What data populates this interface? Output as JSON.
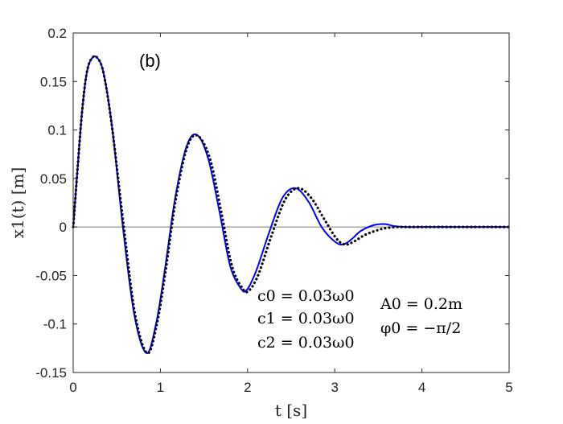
{
  "chart_data": {
    "type": "line",
    "panel_label": "(b)",
    "xlabel": "t [s]",
    "ylabel": "x1(t) [m]",
    "xlim": [
      0,
      5
    ],
    "ylim": [
      -0.15,
      0.2
    ],
    "x_ticks": [
      0,
      1,
      2,
      3,
      4,
      5
    ],
    "y_ticks": [
      -0.15,
      -0.1,
      -0.05,
      0,
      0.05,
      0.1,
      0.15,
      0.2
    ],
    "x_tick_labels": [
      "0",
      "1",
      "2",
      "3",
      "4",
      "5"
    ],
    "y_tick_labels": [
      "-0.15",
      "-0.1",
      "-0.05",
      "0",
      "0.05",
      "0.1",
      "0.15",
      "0.2"
    ],
    "zero_line": true,
    "grid": false,
    "annotations_left": [
      "c0 = 0.03ω0",
      "c1 = 0.03ω0",
      "c2 = 0.03ω0"
    ],
    "annotations_right": [
      "A0 = 0.2m",
      "φ0 = −π/2"
    ],
    "colors": {
      "solid": "#0000ff",
      "dotted": "#000000",
      "axis": "#262626",
      "zero": "#808080"
    },
    "series": [
      {
        "style": "solid",
        "x": [
          0,
          0.05,
          0.1,
          0.15,
          0.2,
          0.27,
          0.35,
          0.45,
          0.57,
          0.7,
          0.84,
          0.95,
          1.05,
          1.17,
          1.3,
          1.42,
          1.55,
          1.68,
          1.8,
          1.92,
          1.99,
          2.1,
          2.25,
          2.4,
          2.55,
          2.7,
          2.85,
          3.0,
          3.1,
          3.2,
          3.3,
          3.45,
          3.57,
          3.68,
          3.8,
          4.0,
          4.5,
          5.0
        ],
        "y": [
          0,
          0.06,
          0.117,
          0.156,
          0.172,
          0.175,
          0.158,
          0.1,
          0.0,
          -0.09,
          -0.13,
          -0.1,
          -0.045,
          0.03,
          0.083,
          0.095,
          0.07,
          0.015,
          -0.04,
          -0.063,
          -0.065,
          -0.045,
          -0.005,
          0.03,
          0.04,
          0.026,
          0.0,
          -0.015,
          -0.018,
          -0.012,
          -0.004,
          0.002,
          0.003,
          0.001,
          0.0,
          0.0,
          0.0,
          0.0
        ]
      },
      {
        "style": "dotted",
        "x": [
          0,
          0.05,
          0.1,
          0.15,
          0.2,
          0.27,
          0.35,
          0.45,
          0.58,
          0.71,
          0.85,
          0.96,
          1.06,
          1.18,
          1.31,
          1.43,
          1.57,
          1.7,
          1.82,
          1.94,
          2.01,
          2.12,
          2.27,
          2.43,
          2.58,
          2.73,
          2.88,
          3.02,
          3.12,
          3.22,
          3.35,
          3.5,
          3.6,
          3.7,
          3.8,
          4.0,
          4.5,
          5.0
        ],
        "y": [
          0,
          0.06,
          0.117,
          0.156,
          0.172,
          0.175,
          0.158,
          0.1,
          0.0,
          -0.09,
          -0.13,
          -0.1,
          -0.045,
          0.03,
          0.083,
          0.094,
          0.07,
          0.015,
          -0.04,
          -0.063,
          -0.066,
          -0.05,
          -0.01,
          0.028,
          0.04,
          0.03,
          0.008,
          -0.012,
          -0.018,
          -0.015,
          -0.008,
          -0.003,
          -0.001,
          0.0,
          0.0,
          0.0,
          0.0,
          0.0
        ]
      }
    ]
  }
}
